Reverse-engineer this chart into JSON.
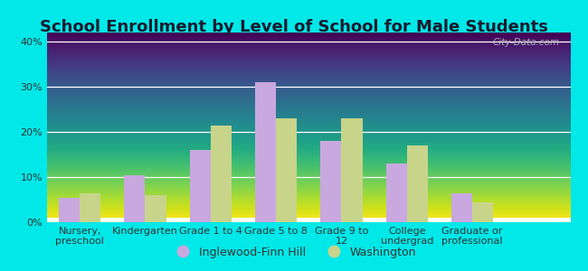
{
  "title": "School Enrollment by Level of School for Male Students",
  "categories": [
    "Nursery,\npreschool",
    "Kindergarten",
    "Grade 1 to 4",
    "Grade 5 to 8",
    "Grade 9 to\n12",
    "College\nundergrad",
    "Graduate or\nprofessional"
  ],
  "inglewood_values": [
    5.5,
    10.5,
    16.0,
    31.0,
    18.0,
    13.0,
    6.5
  ],
  "washington_values": [
    6.5,
    6.0,
    21.5,
    23.0,
    23.0,
    17.0,
    4.5
  ],
  "inglewood_color": "#c9a8e0",
  "washington_color": "#c8d48a",
  "bg_outer": "#00e8e8",
  "ylim": [
    0,
    42
  ],
  "yticks": [
    0,
    10,
    20,
    30,
    40
  ],
  "ytick_labels": [
    "0%",
    "10%",
    "20%",
    "30%",
    "40%"
  ],
  "legend_label1": "Inglewood-Finn Hill",
  "legend_label2": "Washington",
  "watermark": "City-Data.com",
  "title_fontsize": 13,
  "tick_fontsize": 8,
  "title_color": "#1a1a2e",
  "tick_color": "#333333",
  "grid_color": "#d8e8d0",
  "bar_width": 0.32
}
